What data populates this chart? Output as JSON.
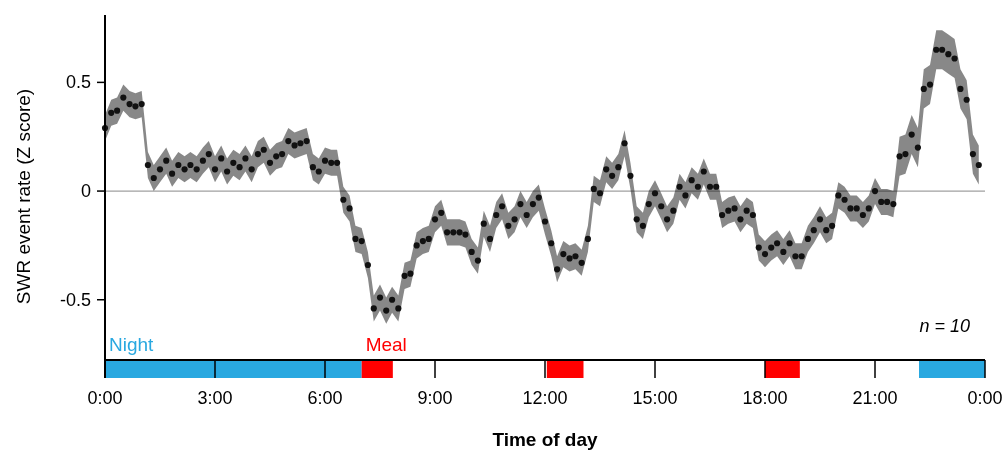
{
  "chart_data": {
    "type": "scatter",
    "xlabel": "Time of day",
    "ylabel": "SWR event rate (Z score)",
    "xlim": [
      0,
      24
    ],
    "ylim": [
      -0.86,
      0.81
    ],
    "xticks": [
      {
        "value": 0,
        "label": "0:00"
      },
      {
        "value": 3,
        "label": "3:00"
      },
      {
        "value": 6,
        "label": "6:00"
      },
      {
        "value": 9,
        "label": "9:00"
      },
      {
        "value": 12,
        "label": "12:00"
      },
      {
        "value": 15,
        "label": "15:00"
      },
      {
        "value": 18,
        "label": "18:00"
      },
      {
        "value": 21,
        "label": "21:00"
      },
      {
        "value": 24,
        "label": "0:00"
      }
    ],
    "yticks": [
      -0.5,
      0,
      0.5
    ],
    "marker": "circle",
    "grid": false,
    "ref_lines": [
      {
        "axis": "y",
        "value": 0,
        "color": "#a0a0a0"
      }
    ],
    "bands": [
      {
        "axis": "x",
        "from": 0,
        "to": 7,
        "label": "Night",
        "color": "#29a8e0"
      },
      {
        "axis": "x",
        "from": 7,
        "to": 7.85,
        "label": "Meal",
        "color": "#ff0000"
      },
      {
        "axis": "x",
        "from": 12.05,
        "to": 13.05,
        "color": "#ff0000"
      },
      {
        "axis": "x",
        "from": 18,
        "to": 18.95,
        "color": "#ff0000"
      },
      {
        "axis": "x",
        "from": 22.2,
        "to": 24,
        "color": "#29a8e0"
      }
    ],
    "annotations": [
      "n = 10"
    ],
    "series": [
      {
        "color": "#111111",
        "x": [
          0,
          0.17,
          0.33,
          0.5,
          0.67,
          0.83,
          1,
          1.17,
          1.33,
          1.5,
          1.67,
          1.83,
          2,
          2.17,
          2.33,
          2.5,
          2.67,
          2.83,
          3,
          3.17,
          3.33,
          3.5,
          3.67,
          3.83,
          4,
          4.17,
          4.33,
          4.5,
          4.67,
          4.83,
          5,
          5.17,
          5.33,
          5.5,
          5.67,
          5.83,
          6,
          6.17,
          6.33,
          6.5,
          6.67,
          6.83,
          7,
          7.17,
          7.33,
          7.5,
          7.67,
          7.83,
          8,
          8.17,
          8.33,
          8.5,
          8.67,
          8.83,
          9,
          9.17,
          9.33,
          9.5,
          9.67,
          9.83,
          10,
          10.17,
          10.33,
          10.5,
          10.67,
          10.83,
          11,
          11.17,
          11.33,
          11.5,
          11.67,
          11.83,
          12,
          12.17,
          12.33,
          12.5,
          12.67,
          12.83,
          13,
          13.17,
          13.33,
          13.5,
          13.67,
          13.83,
          14,
          14.17,
          14.33,
          14.5,
          14.67,
          14.83,
          15,
          15.17,
          15.33,
          15.5,
          15.67,
          15.83,
          16,
          16.17,
          16.33,
          16.5,
          16.67,
          16.83,
          17,
          17.17,
          17.33,
          17.5,
          17.67,
          17.83,
          18,
          18.17,
          18.33,
          18.5,
          18.67,
          18.83,
          19,
          19.17,
          19.33,
          19.5,
          19.67,
          19.83,
          20,
          20.17,
          20.33,
          20.5,
          20.67,
          20.83,
          21,
          21.17,
          21.33,
          21.5,
          21.67,
          21.83,
          22,
          22.17,
          22.33,
          22.5,
          22.67,
          22.83,
          23,
          23.17,
          23.33,
          23.5,
          23.67,
          23.83
        ],
        "values": [
          0.29,
          0.36,
          0.37,
          0.43,
          0.4,
          0.39,
          0.4,
          0.12,
          0.06,
          0.1,
          0.14,
          0.08,
          0.12,
          0.1,
          0.12,
          0.1,
          0.14,
          0.17,
          0.1,
          0.15,
          0.09,
          0.13,
          0.11,
          0.15,
          0.1,
          0.17,
          0.19,
          0.13,
          0.16,
          0.17,
          0.23,
          0.21,
          0.22,
          0.23,
          0.11,
          0.09,
          0.14,
          0.13,
          0.13,
          -0.04,
          -0.08,
          -0.22,
          -0.23,
          -0.34,
          -0.54,
          -0.49,
          -0.55,
          -0.5,
          -0.54,
          -0.39,
          -0.38,
          -0.25,
          -0.23,
          -0.22,
          -0.13,
          -0.1,
          -0.19,
          -0.19,
          -0.19,
          -0.2,
          -0.28,
          -0.32,
          -0.15,
          -0.22,
          -0.11,
          -0.07,
          -0.16,
          -0.13,
          -0.06,
          -0.11,
          -0.06,
          -0.03,
          -0.14,
          -0.24,
          -0.36,
          -0.29,
          -0.31,
          -0.3,
          -0.33,
          -0.22,
          0.01,
          -0.01,
          0.1,
          0.07,
          0.11,
          0.22,
          0.07,
          -0.13,
          -0.16,
          -0.06,
          -0.01,
          -0.07,
          -0.13,
          -0.09,
          0.02,
          -0.02,
          0.05,
          0.02,
          0.09,
          0.02,
          0.02,
          -0.11,
          -0.09,
          -0.08,
          -0.13,
          -0.09,
          -0.11,
          -0.26,
          -0.29,
          -0.26,
          -0.24,
          -0.28,
          -0.24,
          -0.3,
          -0.3,
          -0.22,
          -0.18,
          -0.13,
          -0.18,
          -0.16,
          -0.02,
          -0.04,
          -0.08,
          -0.08,
          -0.11,
          -0.08,
          0.0,
          -0.05,
          -0.05,
          -0.06,
          0.16,
          0.17,
          0.26,
          0.2,
          0.47,
          0.49,
          0.65,
          0.65,
          0.63,
          0.61,
          0.47,
          0.42,
          0.17,
          0.12
        ],
        "lower": [
          0.23,
          0.3,
          0.31,
          0.37,
          0.34,
          0.33,
          0.34,
          0.06,
          0.0,
          0.04,
          0.08,
          0.02,
          0.06,
          0.04,
          0.06,
          0.04,
          0.08,
          0.11,
          0.04,
          0.09,
          0.03,
          0.07,
          0.05,
          0.09,
          0.04,
          0.11,
          0.13,
          0.07,
          0.1,
          0.11,
          0.17,
          0.15,
          0.16,
          0.17,
          0.05,
          0.03,
          0.08,
          0.07,
          0.07,
          -0.1,
          -0.14,
          -0.28,
          -0.29,
          -0.4,
          -0.6,
          -0.55,
          -0.61,
          -0.56,
          -0.6,
          -0.45,
          -0.44,
          -0.31,
          -0.29,
          -0.28,
          -0.19,
          -0.16,
          -0.25,
          -0.25,
          -0.25,
          -0.26,
          -0.34,
          -0.38,
          -0.21,
          -0.28,
          -0.17,
          -0.13,
          -0.22,
          -0.19,
          -0.12,
          -0.17,
          -0.12,
          -0.09,
          -0.2,
          -0.3,
          -0.42,
          -0.35,
          -0.37,
          -0.36,
          -0.39,
          -0.28,
          -0.05,
          -0.07,
          0.04,
          0.01,
          0.05,
          0.16,
          0.01,
          -0.19,
          -0.22,
          -0.12,
          -0.07,
          -0.13,
          -0.19,
          -0.15,
          -0.04,
          -0.08,
          -0.01,
          -0.04,
          0.03,
          -0.04,
          -0.04,
          -0.17,
          -0.15,
          -0.14,
          -0.19,
          -0.15,
          -0.17,
          -0.32,
          -0.35,
          -0.32,
          -0.3,
          -0.34,
          -0.3,
          -0.36,
          -0.36,
          -0.28,
          -0.24,
          -0.19,
          -0.24,
          -0.22,
          -0.08,
          -0.1,
          -0.14,
          -0.14,
          -0.17,
          -0.14,
          -0.06,
          -0.11,
          -0.11,
          -0.12,
          0.07,
          0.08,
          0.17,
          0.11,
          0.38,
          0.4,
          0.56,
          0.56,
          0.54,
          0.52,
          0.38,
          0.33,
          0.08,
          0.03
        ],
        "upper": [
          0.35,
          0.42,
          0.43,
          0.49,
          0.46,
          0.45,
          0.46,
          0.18,
          0.12,
          0.16,
          0.2,
          0.14,
          0.18,
          0.16,
          0.18,
          0.16,
          0.2,
          0.23,
          0.16,
          0.21,
          0.15,
          0.19,
          0.17,
          0.21,
          0.16,
          0.23,
          0.25,
          0.19,
          0.22,
          0.23,
          0.29,
          0.27,
          0.28,
          0.29,
          0.17,
          0.15,
          0.2,
          0.19,
          0.19,
          0.02,
          -0.02,
          -0.16,
          -0.17,
          -0.28,
          -0.48,
          -0.43,
          -0.49,
          -0.44,
          -0.48,
          -0.33,
          -0.32,
          -0.19,
          -0.17,
          -0.16,
          -0.07,
          -0.04,
          -0.13,
          -0.13,
          -0.13,
          -0.14,
          -0.22,
          -0.26,
          -0.09,
          -0.16,
          -0.05,
          -0.01,
          -0.1,
          -0.07,
          0.0,
          -0.05,
          0.0,
          0.03,
          -0.08,
          -0.18,
          -0.3,
          -0.23,
          -0.25,
          -0.24,
          -0.27,
          -0.16,
          0.07,
          0.05,
          0.16,
          0.13,
          0.17,
          0.28,
          0.13,
          -0.07,
          -0.1,
          0.0,
          0.05,
          -0.01,
          -0.07,
          -0.03,
          0.08,
          0.04,
          0.11,
          0.08,
          0.15,
          0.08,
          0.08,
          -0.05,
          -0.03,
          -0.02,
          -0.07,
          -0.03,
          -0.05,
          -0.2,
          -0.23,
          -0.2,
          -0.18,
          -0.22,
          -0.18,
          -0.24,
          -0.24,
          -0.16,
          -0.12,
          -0.07,
          -0.12,
          -0.1,
          0.04,
          0.02,
          -0.02,
          -0.02,
          -0.05,
          -0.02,
          0.06,
          0.01,
          0.01,
          0.0,
          0.25,
          0.26,
          0.35,
          0.29,
          0.56,
          0.58,
          0.74,
          0.74,
          0.72,
          0.7,
          0.56,
          0.51,
          0.26,
          0.21
        ]
      }
    ]
  }
}
